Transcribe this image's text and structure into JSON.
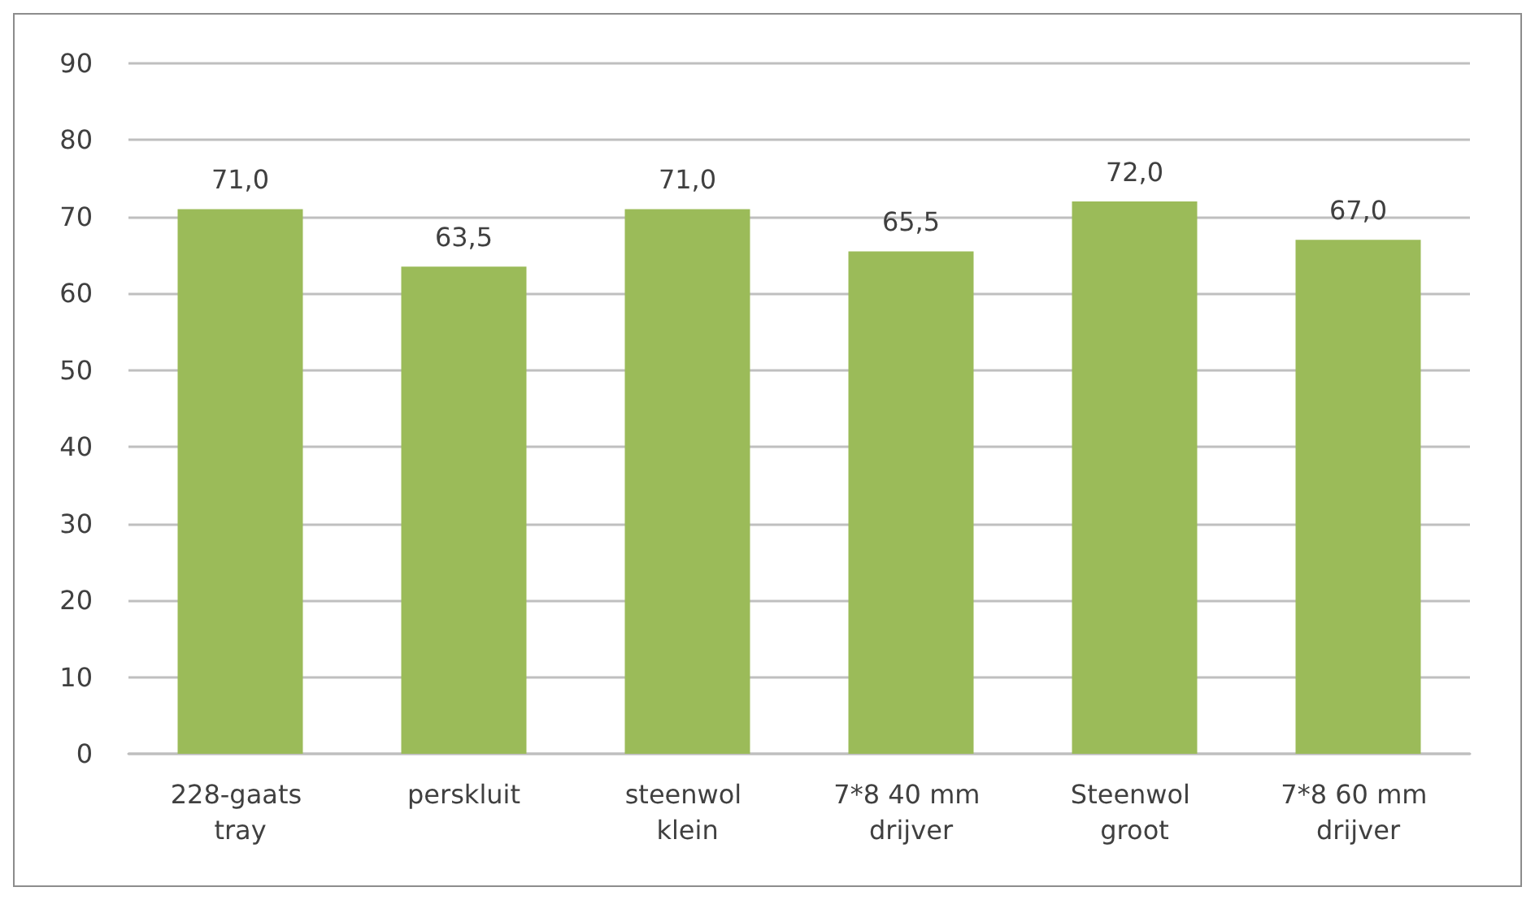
{
  "chart_data": {
    "type": "bar",
    "categories": [
      "228-gaats tray",
      "perskluit",
      "steenwol klein",
      "7*8 40 mm drijver",
      "Steenwol groot",
      "7*8 60 mm drijver"
    ],
    "values": [
      71.0,
      63.5,
      71.0,
      65.5,
      72.0,
      67.0
    ],
    "value_labels": [
      "71,0",
      "63,5",
      "71,0",
      "65,5",
      "72,0",
      "67,0"
    ],
    "color": "#9bbb59",
    "ylim": [
      0,
      90
    ],
    "yticks": [
      0,
      10,
      20,
      30,
      40,
      50,
      60,
      70,
      80,
      90
    ],
    "grid": "y"
  }
}
